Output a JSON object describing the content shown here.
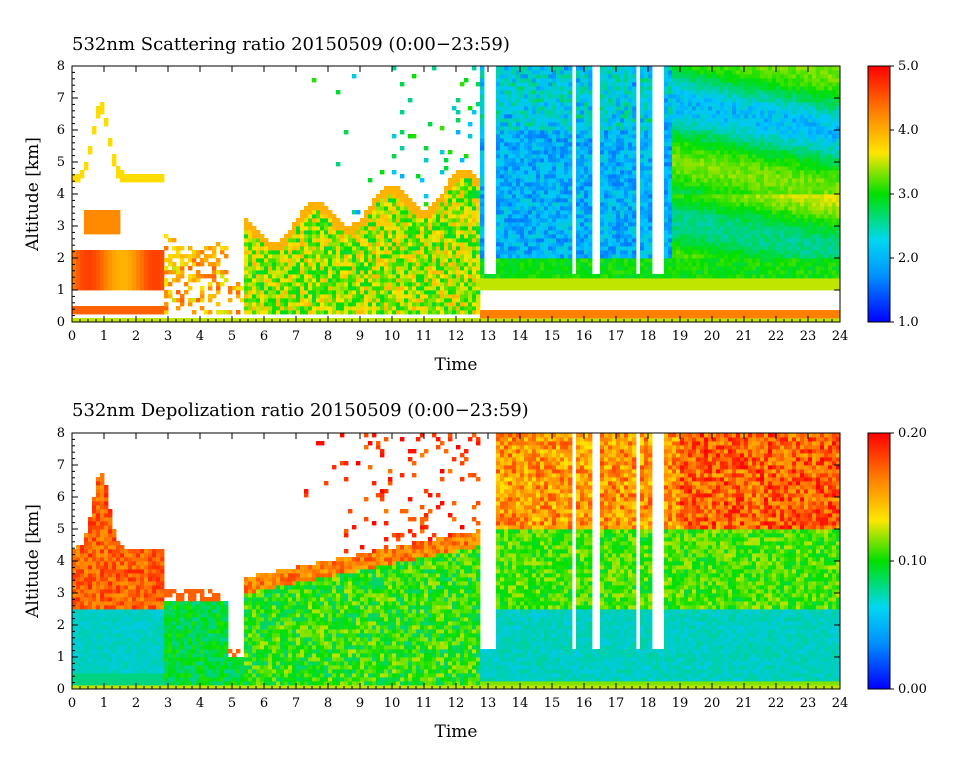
{
  "chart_data": [
    {
      "type": "heatmap",
      "title": "532nm Scattering ratio  20150509 (0:00−23:59)",
      "xlabel": "Time",
      "ylabel": "Altitude [km]",
      "xlim": [
        0,
        24
      ],
      "ylim": [
        0,
        8
      ],
      "x_ticks": [
        "0",
        "1",
        "2",
        "3",
        "4",
        "5",
        "6",
        "7",
        "8",
        "9",
        "10",
        "11",
        "12",
        "13",
        "14",
        "15",
        "16",
        "17",
        "18",
        "19",
        "20",
        "21",
        "22",
        "23",
        "24"
      ],
      "y_ticks": [
        "0",
        "1",
        "2",
        "3",
        "4",
        "5",
        "6",
        "7",
        "8"
      ],
      "colorbar": {
        "min": 1.0,
        "max": 5.0,
        "ticks": [
          "1.0",
          "2.0",
          "3.0",
          "4.0",
          "5.0"
        ]
      },
      "colormap": [
        "#0000ff",
        "#00c8ff",
        "#00e000",
        "#ffe600",
        "#ff8000",
        "#ff0000"
      ],
      "features": [
        {
          "desc": "elevated aerosol layer, high ratio",
          "time": [
            0,
            2.8
          ],
          "alt": [
            1.0,
            2.2
          ],
          "value": 4.5
        },
        {
          "desc": "aerosol layer 3-3.5 km",
          "time": [
            0.5,
            1.5
          ],
          "alt": [
            2.9,
            3.5
          ],
          "value": 4.3
        },
        {
          "desc": "surface layer",
          "time": [
            0,
            2.8
          ],
          "alt": [
            0.2,
            0.45
          ],
          "value": 4.6
        },
        {
          "desc": "column 5.5-12 h",
          "time": [
            5.5,
            12.5
          ],
          "alt": [
            0.3,
            3.0
          ],
          "value": 2.8
        },
        {
          "desc": "boundary layer top 13-24 h",
          "time": [
            13,
            24
          ],
          "alt": [
            1.0,
            2.2
          ],
          "value": 2.6
        },
        {
          "desc": "upper free troposphere 13-24 h",
          "time": [
            13,
            24
          ],
          "alt": [
            2.2,
            8.0
          ],
          "value": 2.2
        }
      ]
    },
    {
      "type": "heatmap",
      "title": "532nm Depolization ratio  20150509 (0:00−23:59)",
      "xlabel": "Time",
      "ylabel": "Altitude [km]",
      "xlim": [
        0,
        24
      ],
      "ylim": [
        0,
        8
      ],
      "x_ticks": [
        "0",
        "1",
        "2",
        "3",
        "4",
        "5",
        "6",
        "7",
        "8",
        "9",
        "10",
        "11",
        "12",
        "13",
        "14",
        "15",
        "16",
        "17",
        "18",
        "19",
        "20",
        "21",
        "22",
        "23",
        "24"
      ],
      "y_ticks": [
        "0",
        "1",
        "2",
        "3",
        "4",
        "5",
        "6",
        "7",
        "8"
      ],
      "colorbar": {
        "min": 0.0,
        "max": 0.2,
        "ticks": [
          "0.00",
          "0.10",
          "0.20"
        ]
      },
      "colormap": [
        "#0000ff",
        "#00c8ff",
        "#00e000",
        "#ffe600",
        "#ff8000",
        "#ff0000"
      ],
      "features": [
        {
          "desc": "low depol boundary layer",
          "time": [
            0,
            24
          ],
          "alt": [
            0,
            2.5
          ],
          "value": 0.05
        },
        {
          "desc": "elevated high depol layer",
          "time": [
            0,
            2.5
          ],
          "alt": [
            2.5,
            4.5
          ],
          "value": 0.17
        },
        {
          "desc": "mid column 5.5-12 h",
          "time": [
            5.5,
            12.5
          ],
          "alt": [
            0,
            3.0
          ],
          "value": 0.08
        },
        {
          "desc": "upper high depol 19-24 h",
          "time": [
            19,
            24
          ],
          "alt": [
            5.5,
            8.0
          ],
          "value": 0.18
        }
      ]
    }
  ]
}
